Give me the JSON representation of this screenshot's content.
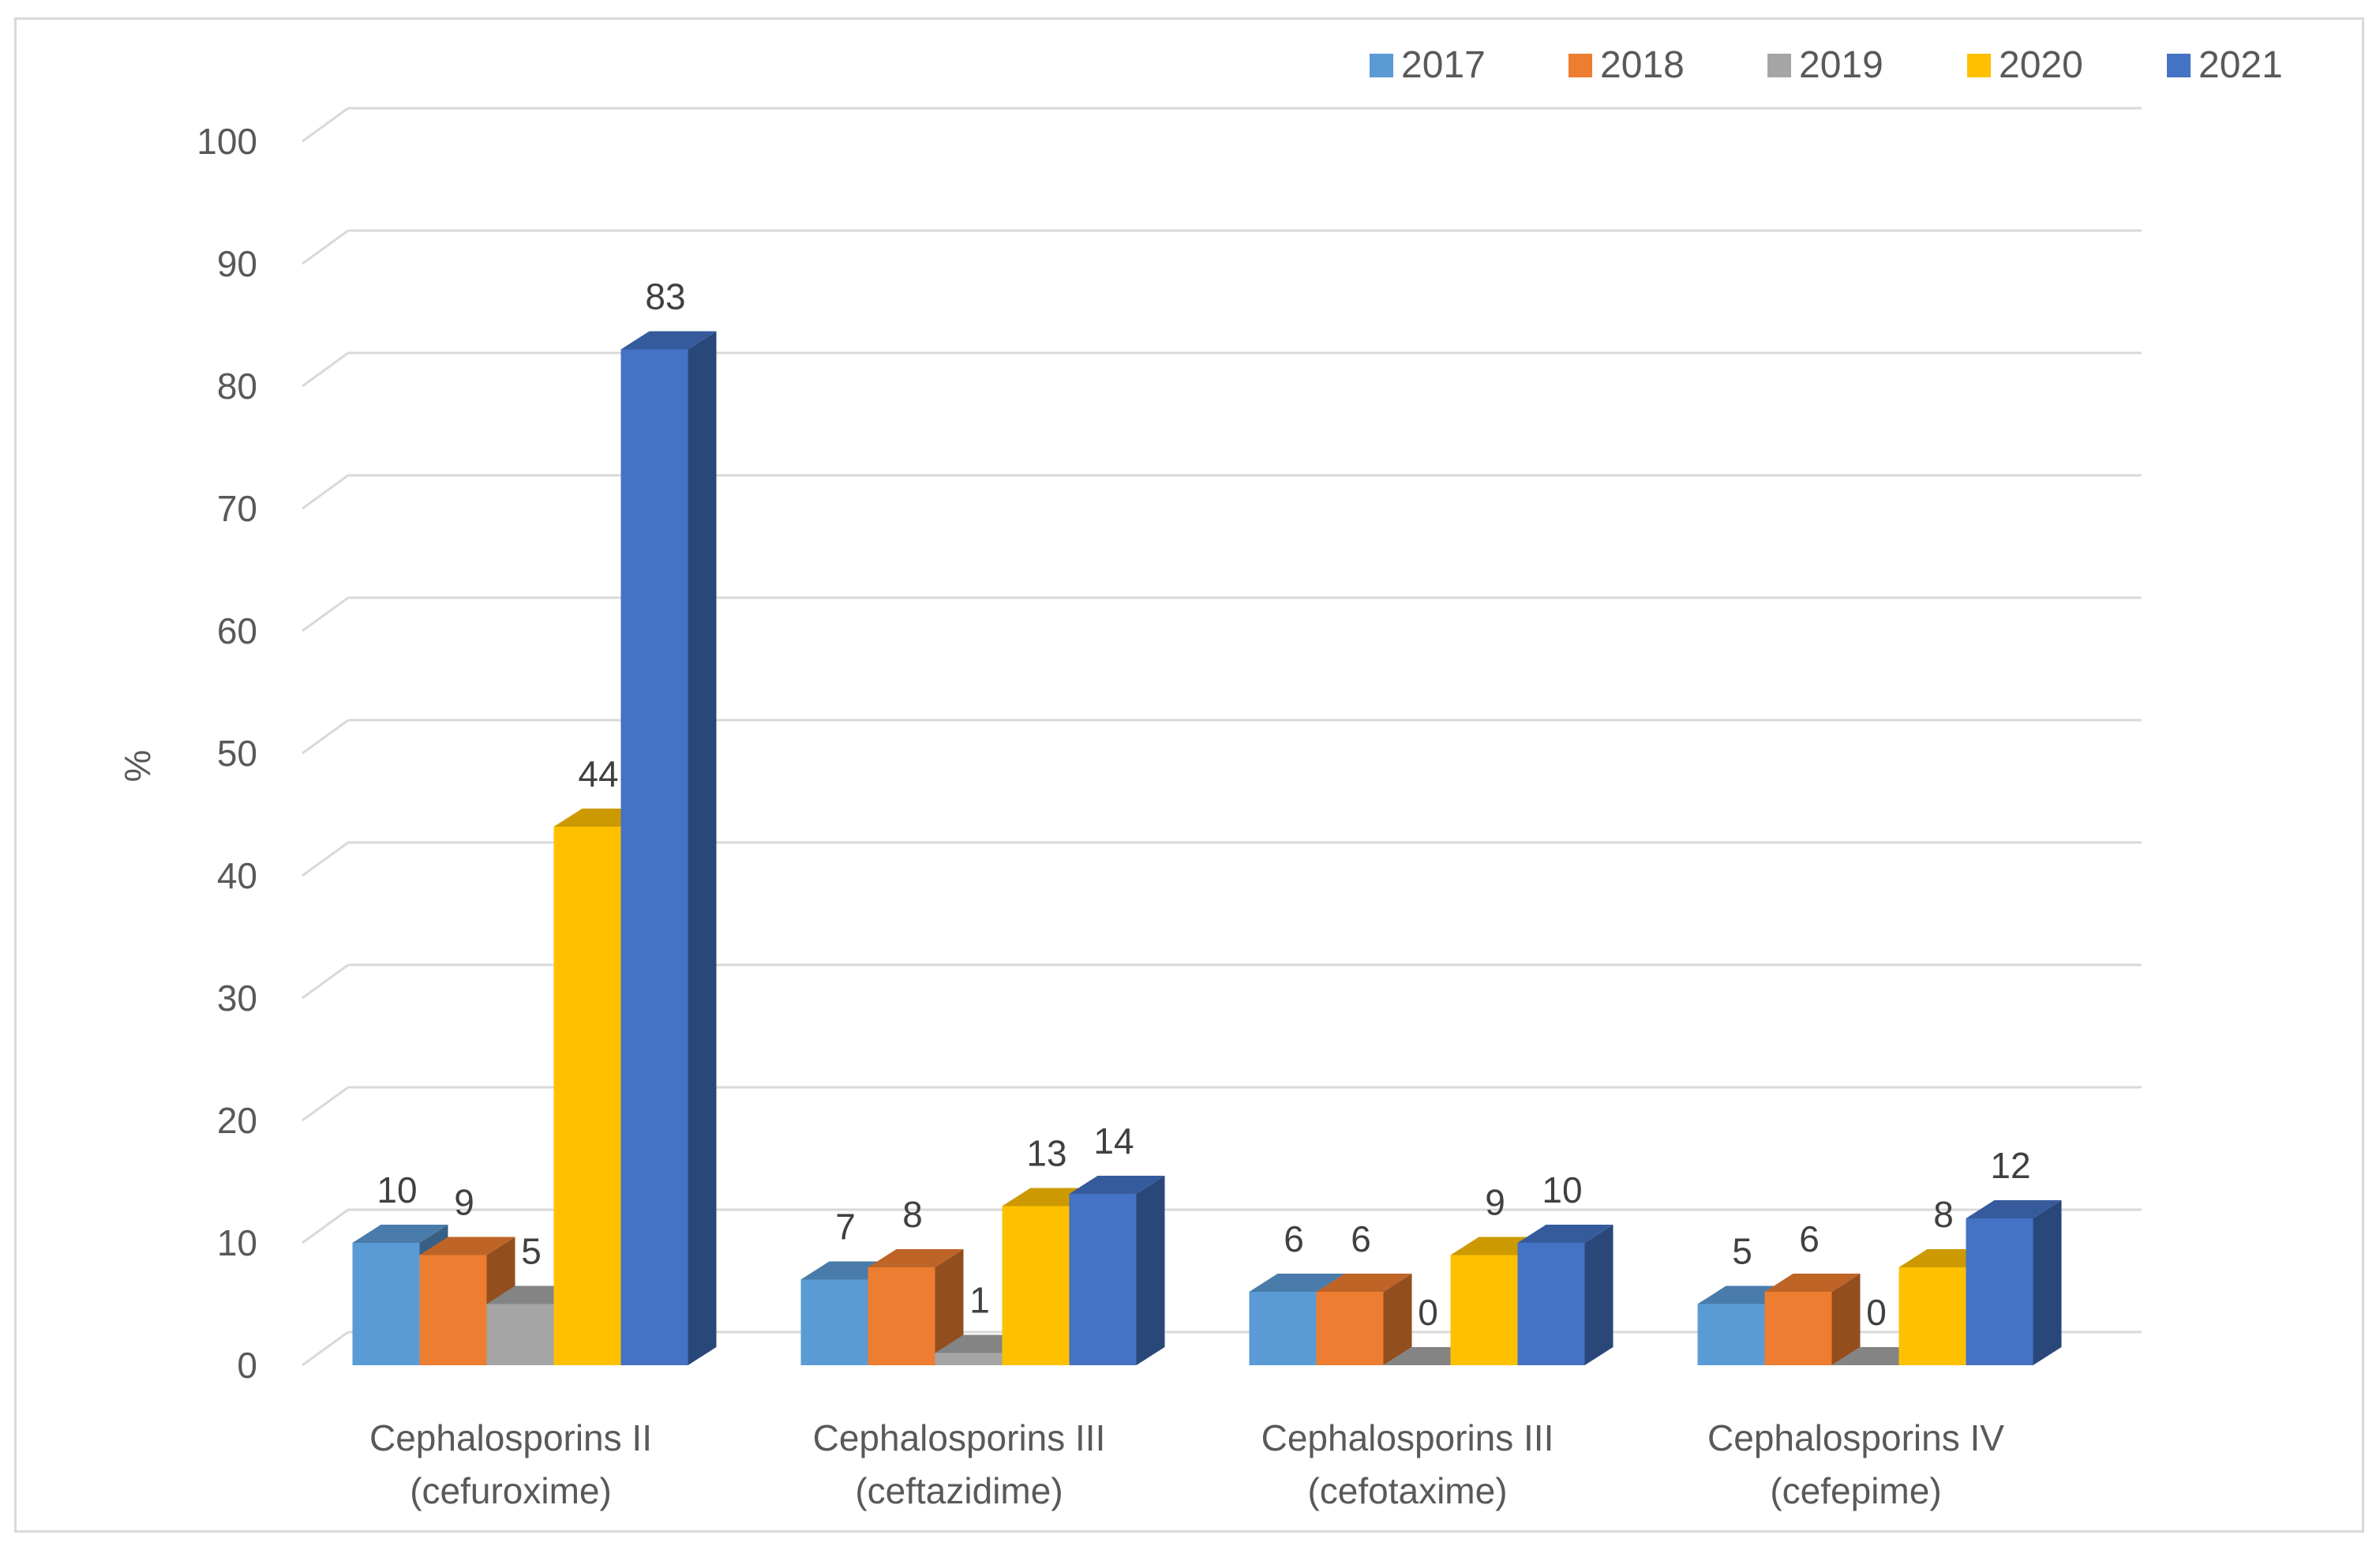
{
  "chart_data": {
    "type": "bar",
    "style": "3d-clustered-column",
    "title": "",
    "xlabel": "",
    "ylabel": "%",
    "ylim": [
      0,
      100
    ],
    "yticks": [
      0,
      10,
      20,
      30,
      40,
      50,
      60,
      70,
      80,
      90,
      100
    ],
    "grid": true,
    "legend_position": "top-right",
    "categories": [
      [
        "Cephalosporins II",
        "(cefuroxime)"
      ],
      [
        "Cephalosporins III",
        "(ceftazidime)"
      ],
      [
        "Cephalosporins III",
        "(cefotaxime)"
      ],
      [
        "Cephalosporins IV",
        "(cefepime)"
      ]
    ],
    "series": [
      {
        "name": "2017",
        "color": "#5b9bd5",
        "values": [
          10,
          7,
          6,
          5
        ]
      },
      {
        "name": "2018",
        "color": "#ed7d31",
        "values": [
          9,
          8,
          6,
          6
        ]
      },
      {
        "name": "2019",
        "color": "#a5a5a5",
        "values": [
          5,
          1,
          0,
          0
        ]
      },
      {
        "name": "2020",
        "color": "#ffc000",
        "values": [
          44,
          13,
          9,
          8
        ]
      },
      {
        "name": "2021",
        "color": "#4472c4",
        "values": [
          83,
          14,
          10,
          12
        ]
      }
    ]
  }
}
